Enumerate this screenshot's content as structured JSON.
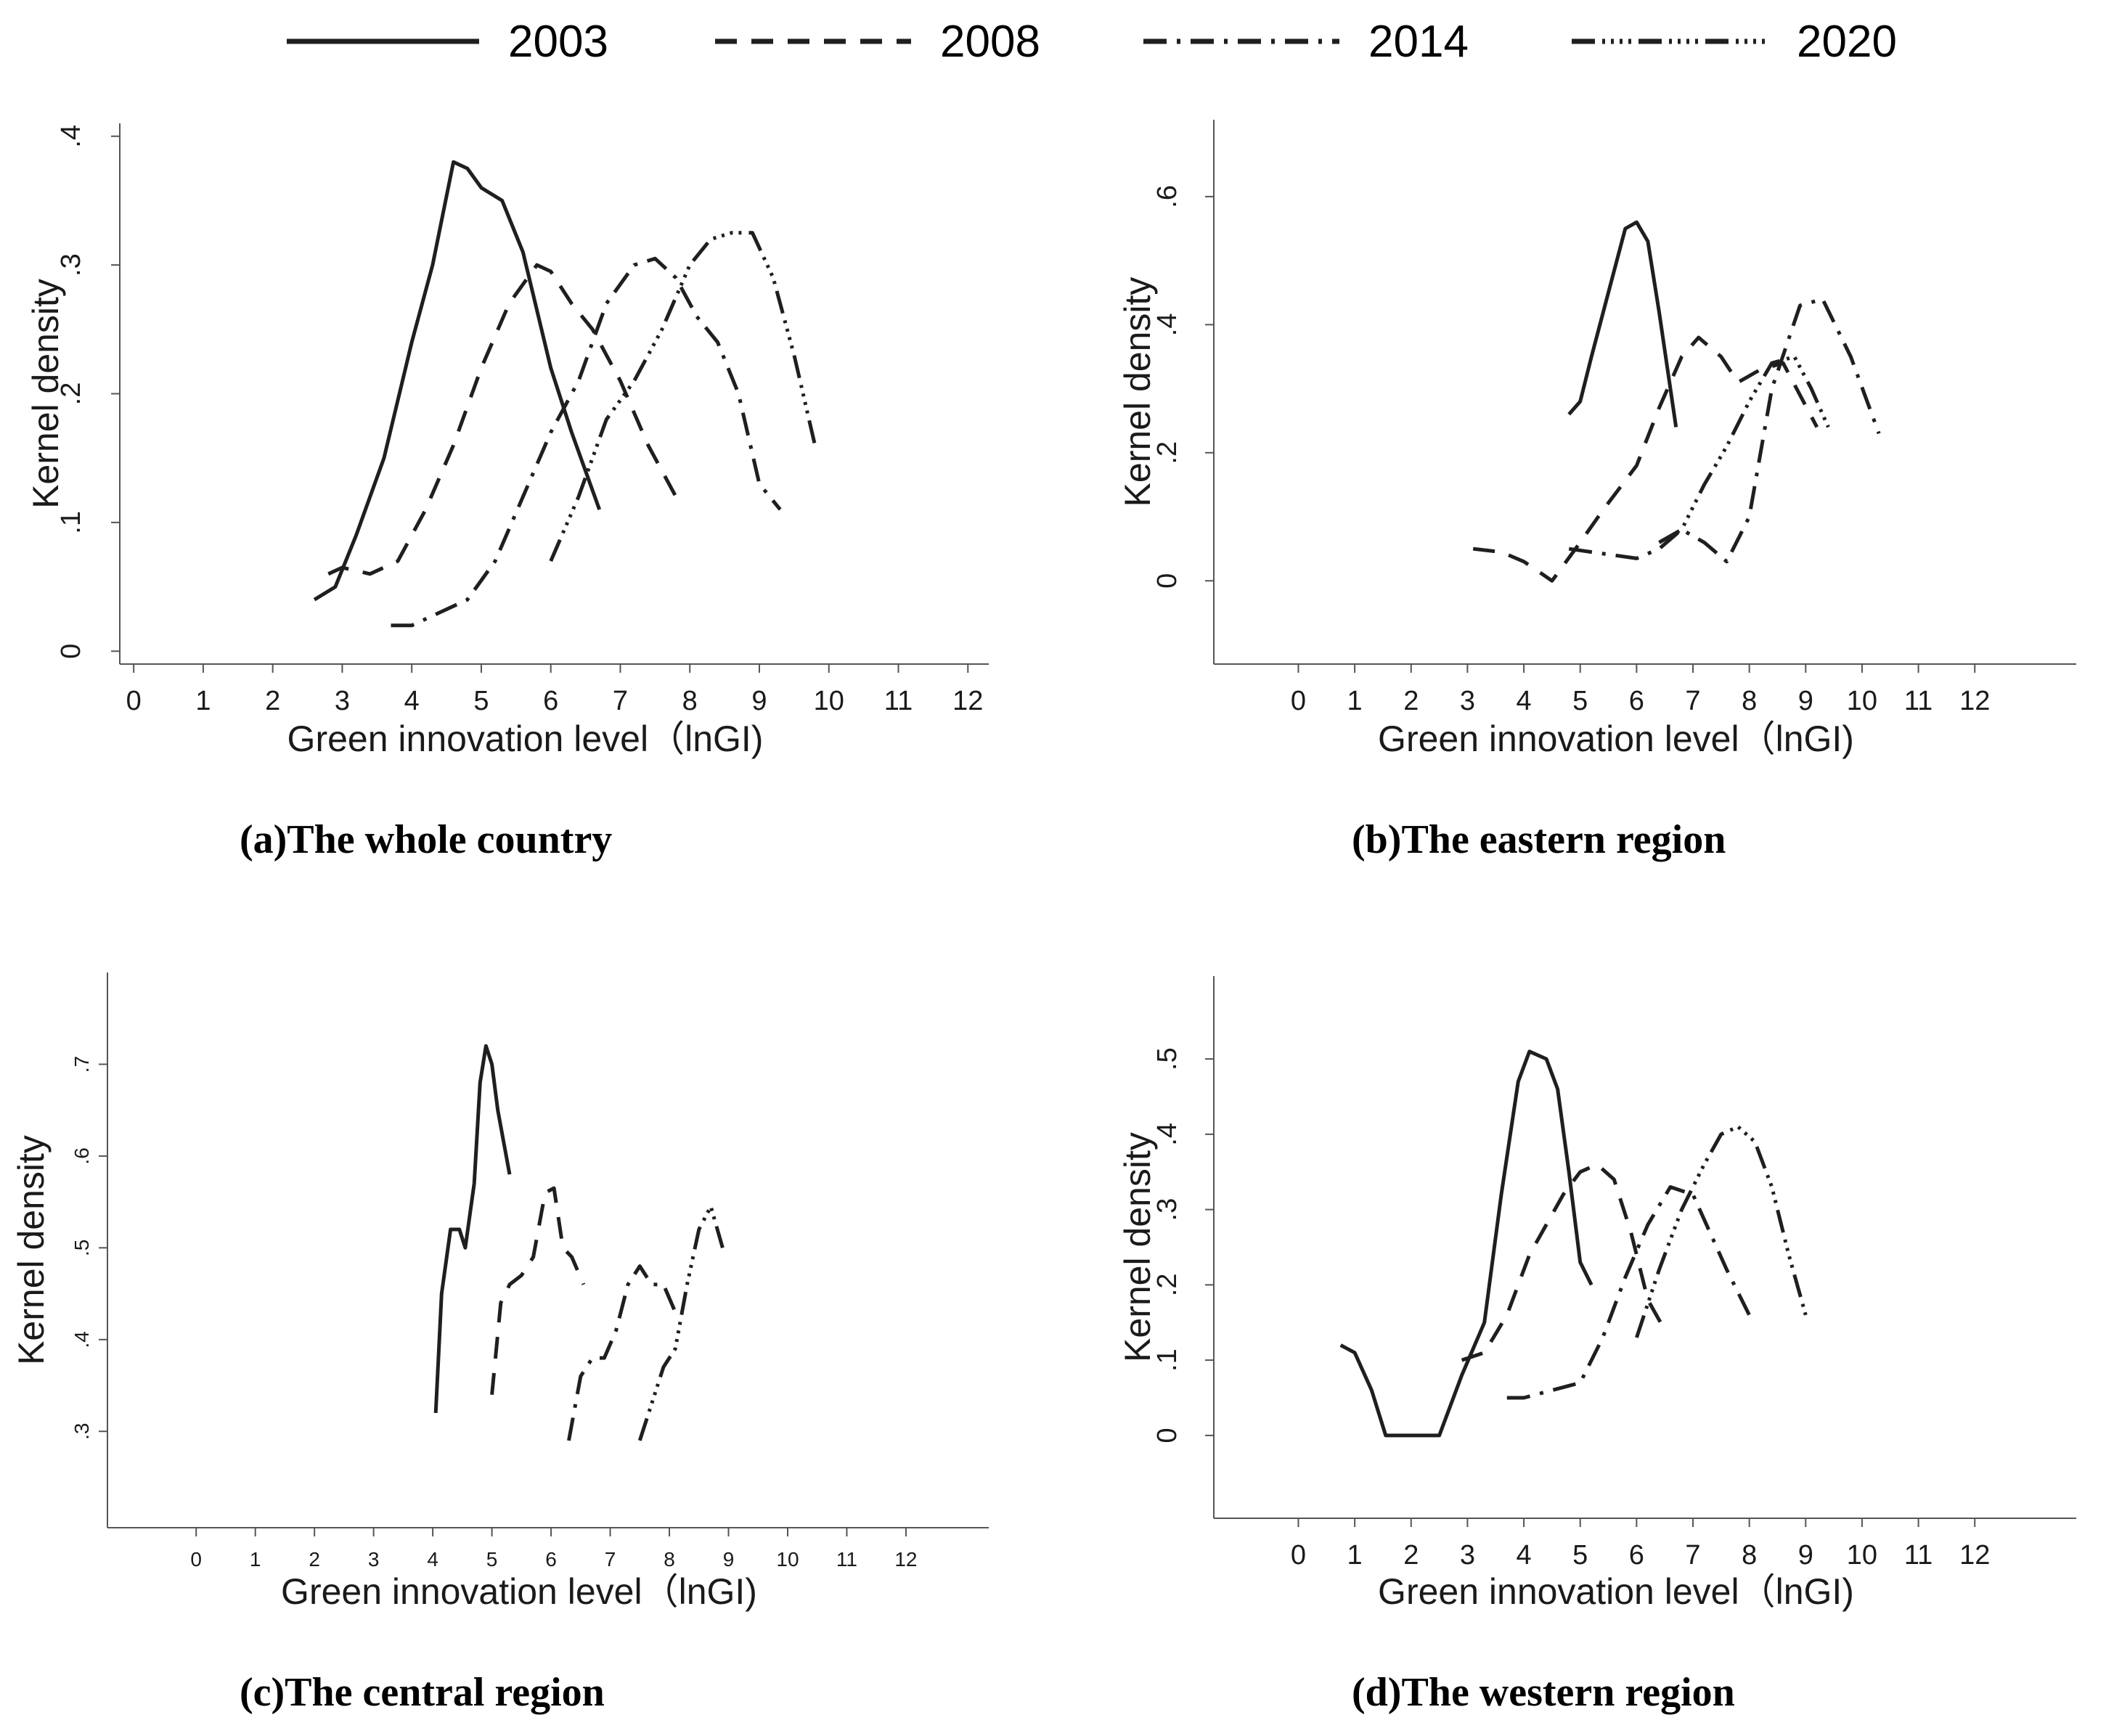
{
  "legend": [
    {
      "label": "2003",
      "style": "solid"
    },
    {
      "label": "2008",
      "style": "dash"
    },
    {
      "label": "2014",
      "style": "dashdot"
    },
    {
      "label": "2020",
      "style": "dotdash"
    }
  ],
  "line_color": "#1f1f1f",
  "background": "#ffffff",
  "chart_data": [
    {
      "type": "line",
      "panel": "a",
      "caption": "(a)The whole country",
      "xlabel": "Green innovation level（lnGI)",
      "ylabel": "Kernel density",
      "xticks": [
        "0",
        "1",
        "2",
        "3",
        "4",
        "5",
        "6",
        "7",
        "8",
        "9",
        "10",
        "11",
        "12"
      ],
      "yticks": [
        "0",
        ".1",
        ".2",
        ".3",
        ".4"
      ],
      "ytick_values": [
        0,
        0.1,
        0.2,
        0.3,
        0.4
      ],
      "xlim": [
        -0.2,
        12.3
      ],
      "ylim": [
        -0.01,
        0.41
      ],
      "series": [
        {
          "name": "2003",
          "x": [
            2.6,
            2.9,
            3.2,
            3.6,
            4.0,
            4.3,
            4.6,
            4.8,
            5.0,
            5.3,
            5.6,
            6.0,
            6.3,
            6.7
          ],
          "y": [
            0.04,
            0.05,
            0.09,
            0.15,
            0.24,
            0.3,
            0.38,
            0.375,
            0.36,
            0.35,
            0.31,
            0.22,
            0.17,
            0.11
          ]
        },
        {
          "name": "2008",
          "x": [
            2.8,
            3.0,
            3.4,
            3.8,
            4.2,
            4.6,
            5.0,
            5.4,
            5.8,
            6.0,
            6.3,
            6.6,
            7.0,
            7.4,
            7.8
          ],
          "y": [
            0.06,
            0.065,
            0.06,
            0.07,
            0.11,
            0.16,
            0.22,
            0.27,
            0.3,
            0.295,
            0.27,
            0.25,
            0.21,
            0.16,
            0.12
          ]
        },
        {
          "name": "2014",
          "x": [
            3.7,
            4.0,
            4.4,
            4.8,
            5.2,
            5.6,
            6.0,
            6.4,
            6.8,
            7.2,
            7.5,
            7.8,
            8.1,
            8.4,
            8.7,
            9.0,
            9.3
          ],
          "y": [
            0.02,
            0.02,
            0.03,
            0.04,
            0.07,
            0.12,
            0.17,
            0.21,
            0.27,
            0.3,
            0.305,
            0.29,
            0.26,
            0.24,
            0.2,
            0.13,
            0.11
          ]
        },
        {
          "name": "2020",
          "x": [
            6.0,
            6.4,
            6.8,
            7.2,
            7.6,
            8.0,
            8.3,
            8.6,
            8.9,
            9.2,
            9.5,
            9.8
          ],
          "y": [
            0.07,
            0.12,
            0.18,
            0.21,
            0.25,
            0.3,
            0.32,
            0.325,
            0.325,
            0.29,
            0.23,
            0.16
          ]
        }
      ]
    },
    {
      "type": "line",
      "panel": "b",
      "caption": "(b)The eastern region",
      "xlabel": "Green innovation level（lnGI)",
      "ylabel": "Kernel density",
      "xticks": [
        "0",
        "1",
        "2",
        "3",
        "4",
        "5",
        "6",
        "7",
        "8",
        "9",
        "10",
        "11",
        "12"
      ],
      "yticks": [
        "0",
        ".2",
        ".4",
        ".6"
      ],
      "ytick_values": [
        0,
        0.2,
        0.4,
        0.6
      ],
      "xlim": [
        -1.5,
        13.8
      ],
      "ylim": [
        -0.13,
        0.72
      ],
      "series": [
        {
          "name": "2003",
          "x": [
            4.8,
            5.0,
            5.2,
            5.5,
            5.8,
            6.0,
            6.2,
            6.4,
            6.7
          ],
          "y": [
            0.26,
            0.28,
            0.35,
            0.45,
            0.55,
            0.56,
            0.53,
            0.42,
            0.24
          ]
        },
        {
          "name": "2008",
          "x": [
            3.1,
            3.6,
            4.0,
            4.5,
            5.0,
            5.4,
            6.0,
            6.4,
            6.8,
            7.1,
            7.5,
            7.8,
            8.2,
            8.6,
            9.2
          ],
          "y": [
            0.05,
            0.045,
            0.03,
            0.0,
            0.06,
            0.11,
            0.18,
            0.27,
            0.35,
            0.38,
            0.35,
            0.31,
            0.33,
            0.34,
            0.24
          ]
        },
        {
          "name": "2014",
          "x": [
            4.8,
            5.2,
            5.6,
            6.0,
            6.4,
            6.8,
            7.2,
            7.6,
            8.0,
            8.4,
            8.9,
            9.3,
            9.8,
            10.3
          ],
          "y": [
            0.05,
            0.045,
            0.04,
            0.035,
            0.05,
            0.08,
            0.06,
            0.03,
            0.1,
            0.3,
            0.43,
            0.44,
            0.35,
            0.23
          ]
        },
        {
          "name": "2020",
          "x": [
            6.4,
            6.8,
            7.2,
            7.6,
            8.0,
            8.4,
            8.8,
            9.1,
            9.4
          ],
          "y": [
            0.06,
            0.08,
            0.15,
            0.21,
            0.28,
            0.34,
            0.35,
            0.3,
            0.24
          ]
        }
      ]
    },
    {
      "type": "line",
      "panel": "c",
      "caption": "(c)The central region",
      "xlabel": "Green innovation level（lnGI)",
      "ylabel": "Kernel density",
      "xticks": [
        "0",
        "1",
        "2",
        "3",
        "4",
        "5",
        "6",
        "7",
        "8",
        "9",
        "10",
        "11",
        "12"
      ],
      "yticks": [
        ".3",
        ".4",
        ".5",
        ".6",
        ".7"
      ],
      "ytick_values": [
        0.3,
        0.4,
        0.5,
        0.6,
        0.7
      ],
      "xlim": [
        -1.5,
        13.4
      ],
      "ylim": [
        0.195,
        0.8
      ],
      "series": [
        {
          "name": "2003",
          "x": [
            4.05,
            4.15,
            4.3,
            4.45,
            4.55,
            4.7,
            4.8,
            4.9,
            5.0,
            5.1,
            5.3
          ],
          "y": [
            0.32,
            0.45,
            0.52,
            0.52,
            0.5,
            0.57,
            0.68,
            0.72,
            0.7,
            0.65,
            0.58
          ]
        },
        {
          "name": "2008",
          "x": [
            5.0,
            5.15,
            5.3,
            5.5,
            5.7,
            5.9,
            6.05,
            6.2,
            6.35,
            6.55
          ],
          "y": [
            0.34,
            0.44,
            0.46,
            0.47,
            0.49,
            0.56,
            0.565,
            0.5,
            0.49,
            0.46
          ]
        },
        {
          "name": "2014",
          "x": [
            6.3,
            6.5,
            6.7,
            6.9,
            7.1,
            7.3,
            7.5,
            7.7,
            7.9,
            8.1
          ],
          "y": [
            0.29,
            0.36,
            0.38,
            0.38,
            0.41,
            0.46,
            0.48,
            0.46,
            0.46,
            0.43
          ]
        },
        {
          "name": "2020",
          "x": [
            7.5,
            7.7,
            7.9,
            8.1,
            8.3,
            8.5,
            8.7,
            8.9
          ],
          "y": [
            0.29,
            0.33,
            0.37,
            0.39,
            0.46,
            0.52,
            0.545,
            0.5
          ]
        }
      ]
    },
    {
      "type": "line",
      "panel": "d",
      "caption": "(d)The western region",
      "xlabel": "Green innovation level（lnGI)",
      "ylabel": "Kernel density",
      "xticks": [
        "0",
        "1",
        "2",
        "3",
        "4",
        "5",
        "6",
        "7",
        "8",
        "9",
        "10",
        "11",
        "12"
      ],
      "yticks": [
        "0",
        ".1",
        ".2",
        ".3",
        ".4",
        ".5"
      ],
      "ytick_values": [
        0,
        0.1,
        0.2,
        0.3,
        0.4,
        0.5
      ],
      "xlim": [
        -1.5,
        13.8
      ],
      "ylim": [
        -0.11,
        0.61
      ],
      "series": [
        {
          "name": "2003",
          "x": [
            0.75,
            1.0,
            1.3,
            1.55,
            2.0,
            2.5,
            2.9,
            3.3,
            3.6,
            3.9,
            4.1,
            4.4,
            4.6,
            4.8,
            5.0,
            5.2
          ],
          "y": [
            0.12,
            0.11,
            0.06,
            0.0,
            0.0,
            0.0,
            0.08,
            0.15,
            0.32,
            0.47,
            0.51,
            0.5,
            0.46,
            0.35,
            0.23,
            0.2
          ]
        },
        {
          "name": "2008",
          "x": [
            2.9,
            3.3,
            3.7,
            4.1,
            4.4,
            4.7,
            5.0,
            5.3,
            5.6,
            5.9,
            6.2,
            6.5
          ],
          "y": [
            0.1,
            0.11,
            0.16,
            0.24,
            0.28,
            0.32,
            0.35,
            0.36,
            0.34,
            0.27,
            0.18,
            0.14
          ]
        },
        {
          "name": "2014",
          "x": [
            3.7,
            4.0,
            4.5,
            5.0,
            5.4,
            5.8,
            6.2,
            6.6,
            7.0,
            7.3,
            7.6,
            8.0
          ],
          "y": [
            0.05,
            0.05,
            0.06,
            0.07,
            0.13,
            0.21,
            0.28,
            0.33,
            0.32,
            0.27,
            0.22,
            0.16
          ]
        },
        {
          "name": "2020",
          "x": [
            6.0,
            6.4,
            6.8,
            7.2,
            7.5,
            7.8,
            8.1,
            8.4,
            8.7,
            9.0
          ],
          "y": [
            0.13,
            0.22,
            0.3,
            0.36,
            0.4,
            0.41,
            0.39,
            0.33,
            0.24,
            0.16
          ]
        }
      ]
    }
  ]
}
